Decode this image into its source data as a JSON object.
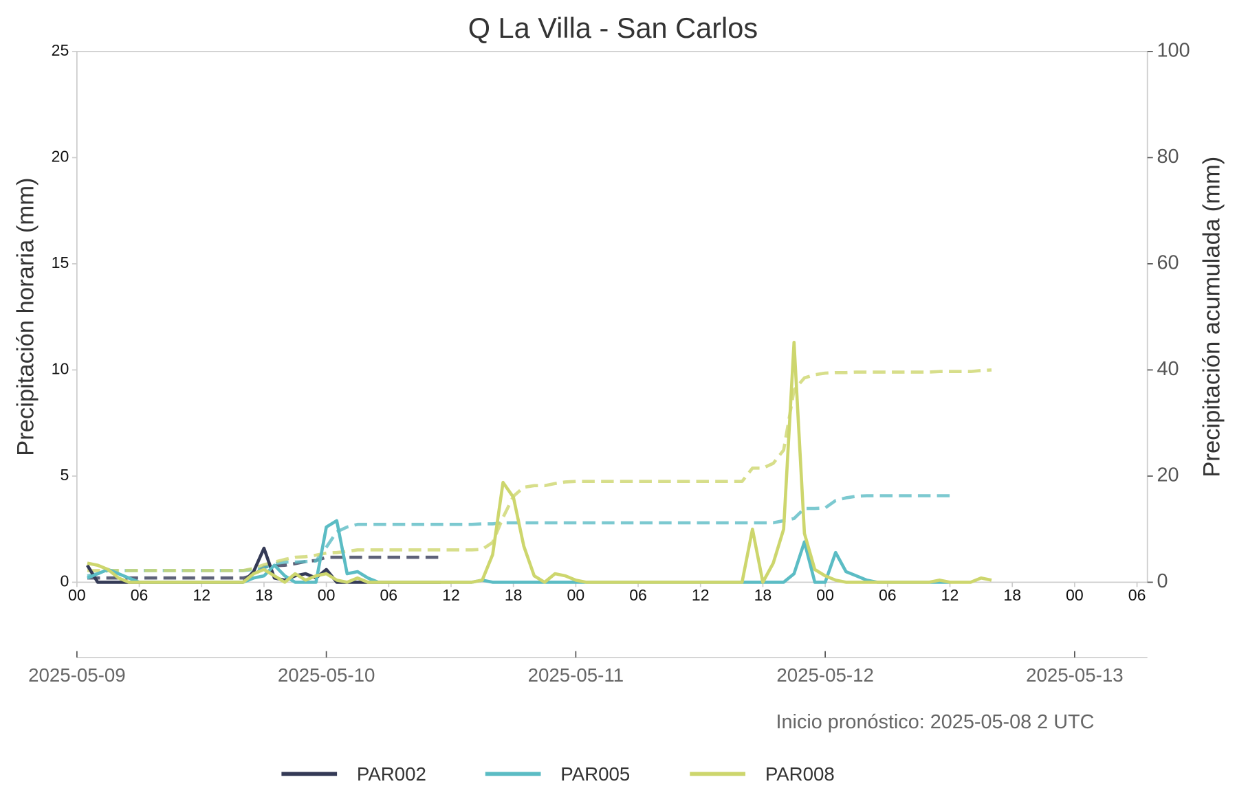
{
  "chart_data": {
    "type": "line",
    "title": "Q La Villa - San Carlos",
    "ylabel": "Precipitación horaria (mm)",
    "y2label": "Precipitación acumulada (mm)",
    "annotation": "Inicio pronóstico: 2025-05-08 2 UTC",
    "legend": "bottom",
    "grid": false,
    "x": [
      "2025-05-09 01:00",
      "2025-05-09 02:00",
      "2025-05-09 03:00",
      "2025-05-09 04:00",
      "2025-05-09 05:00",
      "2025-05-09 06:00",
      "2025-05-09 07:00",
      "2025-05-09 08:00",
      "2025-05-09 09:00",
      "2025-05-09 10:00",
      "2025-05-09 11:00",
      "2025-05-09 12:00",
      "2025-05-09 13:00",
      "2025-05-09 14:00",
      "2025-05-09 15:00",
      "2025-05-09 16:00",
      "2025-05-09 17:00",
      "2025-05-09 18:00",
      "2025-05-09 19:00",
      "2025-05-09 20:00",
      "2025-05-09 21:00",
      "2025-05-09 22:00",
      "2025-05-09 23:00",
      "2025-05-10 00:00",
      "2025-05-10 01:00",
      "2025-05-10 02:00",
      "2025-05-10 03:00",
      "2025-05-10 04:00",
      "2025-05-10 05:00",
      "2025-05-10 06:00",
      "2025-05-10 07:00",
      "2025-05-10 08:00",
      "2025-05-10 09:00",
      "2025-05-10 10:00",
      "2025-05-10 11:00",
      "2025-05-10 12:00",
      "2025-05-10 13:00",
      "2025-05-10 14:00",
      "2025-05-10 15:00",
      "2025-05-10 16:00",
      "2025-05-10 17:00",
      "2025-05-10 18:00",
      "2025-05-10 19:00",
      "2025-05-10 20:00",
      "2025-05-10 21:00",
      "2025-05-10 22:00",
      "2025-05-10 23:00",
      "2025-05-11 00:00",
      "2025-05-11 01:00",
      "2025-05-11 02:00",
      "2025-05-11 03:00",
      "2025-05-11 04:00",
      "2025-05-11 05:00",
      "2025-05-11 06:00",
      "2025-05-11 07:00",
      "2025-05-11 08:00",
      "2025-05-11 09:00",
      "2025-05-11 10:00",
      "2025-05-11 11:00",
      "2025-05-11 12:00",
      "2025-05-11 13:00",
      "2025-05-11 14:00",
      "2025-05-11 15:00",
      "2025-05-11 16:00",
      "2025-05-11 17:00",
      "2025-05-11 18:00",
      "2025-05-11 19:00",
      "2025-05-11 20:00",
      "2025-05-11 21:00",
      "2025-05-11 22:00",
      "2025-05-11 23:00",
      "2025-05-12 00:00",
      "2025-05-12 01:00",
      "2025-05-12 02:00",
      "2025-05-12 03:00",
      "2025-05-12 04:00",
      "2025-05-12 05:00",
      "2025-05-12 06:00",
      "2025-05-12 07:00",
      "2025-05-12 08:00",
      "2025-05-12 09:00",
      "2025-05-12 10:00",
      "2025-05-12 11:00",
      "2025-05-12 12:00",
      "2025-05-12 13:00",
      "2025-05-12 14:00",
      "2025-05-12 15:00",
      "2025-05-12 16:00"
    ],
    "xlim": [
      "2025-05-09 00:00",
      "2025-05-13 07:00"
    ],
    "xticks": [
      {
        "value": "2025-05-09 00:00",
        "label": "00"
      },
      {
        "value": "2025-05-09 06:00",
        "label": "06"
      },
      {
        "value": "2025-05-09 12:00",
        "label": "12"
      },
      {
        "value": "2025-05-09 18:00",
        "label": "18"
      },
      {
        "value": "2025-05-10 00:00",
        "label": "00"
      },
      {
        "value": "2025-05-10 06:00",
        "label": "06"
      },
      {
        "value": "2025-05-10 12:00",
        "label": "12"
      },
      {
        "value": "2025-05-10 18:00",
        "label": "18"
      },
      {
        "value": "2025-05-11 00:00",
        "label": "00"
      },
      {
        "value": "2025-05-11 06:00",
        "label": "06"
      },
      {
        "value": "2025-05-11 12:00",
        "label": "12"
      },
      {
        "value": "2025-05-11 18:00",
        "label": "18"
      },
      {
        "value": "2025-05-12 00:00",
        "label": "00"
      },
      {
        "value": "2025-05-12 06:00",
        "label": "06"
      },
      {
        "value": "2025-05-12 12:00",
        "label": "12"
      },
      {
        "value": "2025-05-12 18:00",
        "label": "18"
      },
      {
        "value": "2025-05-13 00:00",
        "label": "00"
      },
      {
        "value": "2025-05-13 06:00",
        "label": "06"
      }
    ],
    "x2ticks": [
      "2025-05-09",
      "2025-05-10",
      "2025-05-11",
      "2025-05-12",
      "2025-05-13"
    ],
    "ylim": [
      0,
      25
    ],
    "yticks": [
      0,
      5,
      10,
      15,
      20,
      25
    ],
    "y2lim": [
      0,
      100
    ],
    "y2ticks": [
      0,
      20,
      40,
      60,
      80,
      100
    ],
    "series": [
      {
        "name": "PAR002",
        "color": "#343a56",
        "values": [
          0.8,
          0,
          0,
          0,
          0,
          0,
          0,
          0,
          0,
          0,
          0,
          0,
          0,
          0,
          0,
          0,
          0.5,
          1.6,
          0.2,
          0.1,
          0.3,
          0.4,
          0.2,
          0.6,
          0,
          0,
          0,
          0,
          0,
          0,
          0,
          0,
          0,
          0,
          0,
          null,
          null,
          null,
          null,
          null,
          null,
          null,
          null,
          null,
          null,
          null,
          null,
          null,
          null,
          null,
          null,
          null,
          null,
          null,
          null,
          null,
          null,
          null,
          null,
          null,
          null,
          null,
          null,
          null,
          null,
          null,
          null,
          null,
          null,
          null,
          null,
          null,
          null,
          null,
          null,
          null,
          null,
          null,
          null,
          null,
          null,
          null,
          null,
          null,
          null,
          null,
          null,
          null
        ],
        "cumulative_values": [
          0.8,
          0.8,
          0.8,
          0.8,
          0.8,
          0.8,
          0.8,
          0.8,
          0.8,
          0.8,
          0.8,
          0.8,
          0.8,
          0.8,
          0.8,
          0.8,
          1.3,
          2.9,
          3.1,
          3.2,
          3.5,
          3.9,
          4.1,
          4.7,
          4.7,
          4.7,
          4.7,
          4.7,
          4.7,
          4.7,
          4.7,
          4.7,
          4.7,
          4.7,
          4.7,
          null,
          null,
          null,
          null,
          null,
          null,
          null,
          null,
          null,
          null,
          null,
          null,
          null,
          null,
          null,
          null,
          null,
          null,
          null,
          null,
          null,
          null,
          null,
          null,
          null,
          null,
          null,
          null,
          null,
          null,
          null,
          null,
          null,
          null,
          null,
          null,
          null,
          null,
          null,
          null,
          null,
          null,
          null,
          null,
          null,
          null,
          null,
          null,
          null,
          null,
          null,
          null,
          null
        ]
      },
      {
        "name": "PAR005",
        "color": "#5bbcc4",
        "values": [
          0.2,
          0.4,
          0.6,
          0.4,
          0.2,
          0,
          0,
          0,
          0,
          0,
          0,
          0,
          0,
          0,
          0,
          0,
          0.2,
          0.3,
          0.8,
          0.3,
          0,
          0,
          0,
          2.6,
          2.9,
          0.4,
          0.5,
          0.2,
          0,
          0,
          0,
          0,
          0,
          0,
          0,
          0,
          0,
          0,
          0.1,
          0,
          0,
          0,
          0,
          0,
          0,
          0,
          0,
          0,
          0,
          0,
          0,
          0,
          0,
          0,
          0,
          0,
          0,
          0,
          0,
          0,
          0,
          0,
          0,
          0,
          0,
          0,
          0,
          0,
          0.4,
          1.9,
          0,
          0,
          1.4,
          0.5,
          0.3,
          0.1,
          0,
          0,
          0,
          0,
          0,
          0,
          0,
          0,
          null,
          null,
          null,
          null
        ],
        "cumulative_values": [
          1.2,
          1.6,
          2.2,
          2.2,
          2.2,
          2.2,
          2.2,
          2.2,
          2.2,
          2.2,
          2.2,
          2.2,
          2.2,
          2.2,
          2.2,
          2.2,
          2.4,
          2.7,
          3.5,
          3.8,
          3.8,
          3.9,
          4.0,
          6.6,
          9.5,
          10.4,
          10.9,
          10.9,
          10.9,
          10.9,
          10.9,
          10.9,
          10.9,
          10.9,
          10.9,
          10.9,
          10.9,
          10.9,
          11.0,
          11.0,
          11.2,
          11.2,
          11.2,
          11.2,
          11.2,
          11.2,
          11.2,
          11.2,
          11.2,
          11.2,
          11.2,
          11.2,
          11.2,
          11.2,
          11.2,
          11.2,
          11.2,
          11.2,
          11.2,
          11.2,
          11.2,
          11.2,
          11.2,
          11.2,
          11.2,
          11.2,
          11.2,
          11.6,
          12.0,
          13.9,
          13.9,
          14.0,
          15.4,
          15.9,
          16.2,
          16.3,
          16.3,
          16.3,
          16.3,
          16.3,
          16.3,
          16.3,
          16.3,
          16.3,
          null,
          null,
          null,
          null
        ]
      },
      {
        "name": "PAR008",
        "color": "#cdd66d",
        "values": [
          0.9,
          0.8,
          0.6,
          0.2,
          0,
          0,
          0,
          0,
          0,
          0,
          0,
          0,
          0,
          0,
          0,
          0,
          0.4,
          0.6,
          0.3,
          0,
          0.4,
          0.1,
          0.3,
          0.4,
          0.1,
          0,
          0.2,
          0,
          0,
          0,
          0,
          0,
          0,
          0,
          0,
          0,
          0,
          0,
          0.1,
          1.3,
          4.7,
          4.0,
          1.7,
          0.3,
          0,
          0.4,
          0.3,
          0.1,
          0,
          0,
          0,
          0,
          0,
          0,
          0,
          0,
          0,
          0,
          0,
          0,
          0,
          0,
          0,
          0,
          2.5,
          0,
          0.9,
          2.5,
          11.3,
          2.3,
          0.6,
          0.3,
          0.1,
          0,
          0,
          0,
          0,
          0,
          0,
          0,
          0,
          0,
          0.1,
          0,
          0,
          0,
          0.2,
          0.1
        ],
        "cumulative_values": [
          2.2,
          2.2,
          2.2,
          2.2,
          2.2,
          2.2,
          2.2,
          2.2,
          2.2,
          2.2,
          2.2,
          2.2,
          2.2,
          2.2,
          2.2,
          2.2,
          2.6,
          3.3,
          3.8,
          4.3,
          4.7,
          4.8,
          5.1,
          5.5,
          5.6,
          5.8,
          6.1,
          6.1,
          6.1,
          6.1,
          6.1,
          6.1,
          6.1,
          6.1,
          6.1,
          6.1,
          6.1,
          6.1,
          6.2,
          7.5,
          12.2,
          16.2,
          17.9,
          18.2,
          18.2,
          18.6,
          18.9,
          19.0,
          19.0,
          19.0,
          19.0,
          19.0,
          19.0,
          19.0,
          19.0,
          19.0,
          19.0,
          19.0,
          19.0,
          19.0,
          19.0,
          19.0,
          19.0,
          19.0,
          21.5,
          21.5,
          22.4,
          24.9,
          36.2,
          38.5,
          39.1,
          39.4,
          39.5,
          39.5,
          39.6,
          39.6,
          39.6,
          39.6,
          39.6,
          39.6,
          39.6,
          39.6,
          39.7,
          39.7,
          39.7,
          39.7,
          39.9,
          40.0
        ]
      }
    ]
  }
}
